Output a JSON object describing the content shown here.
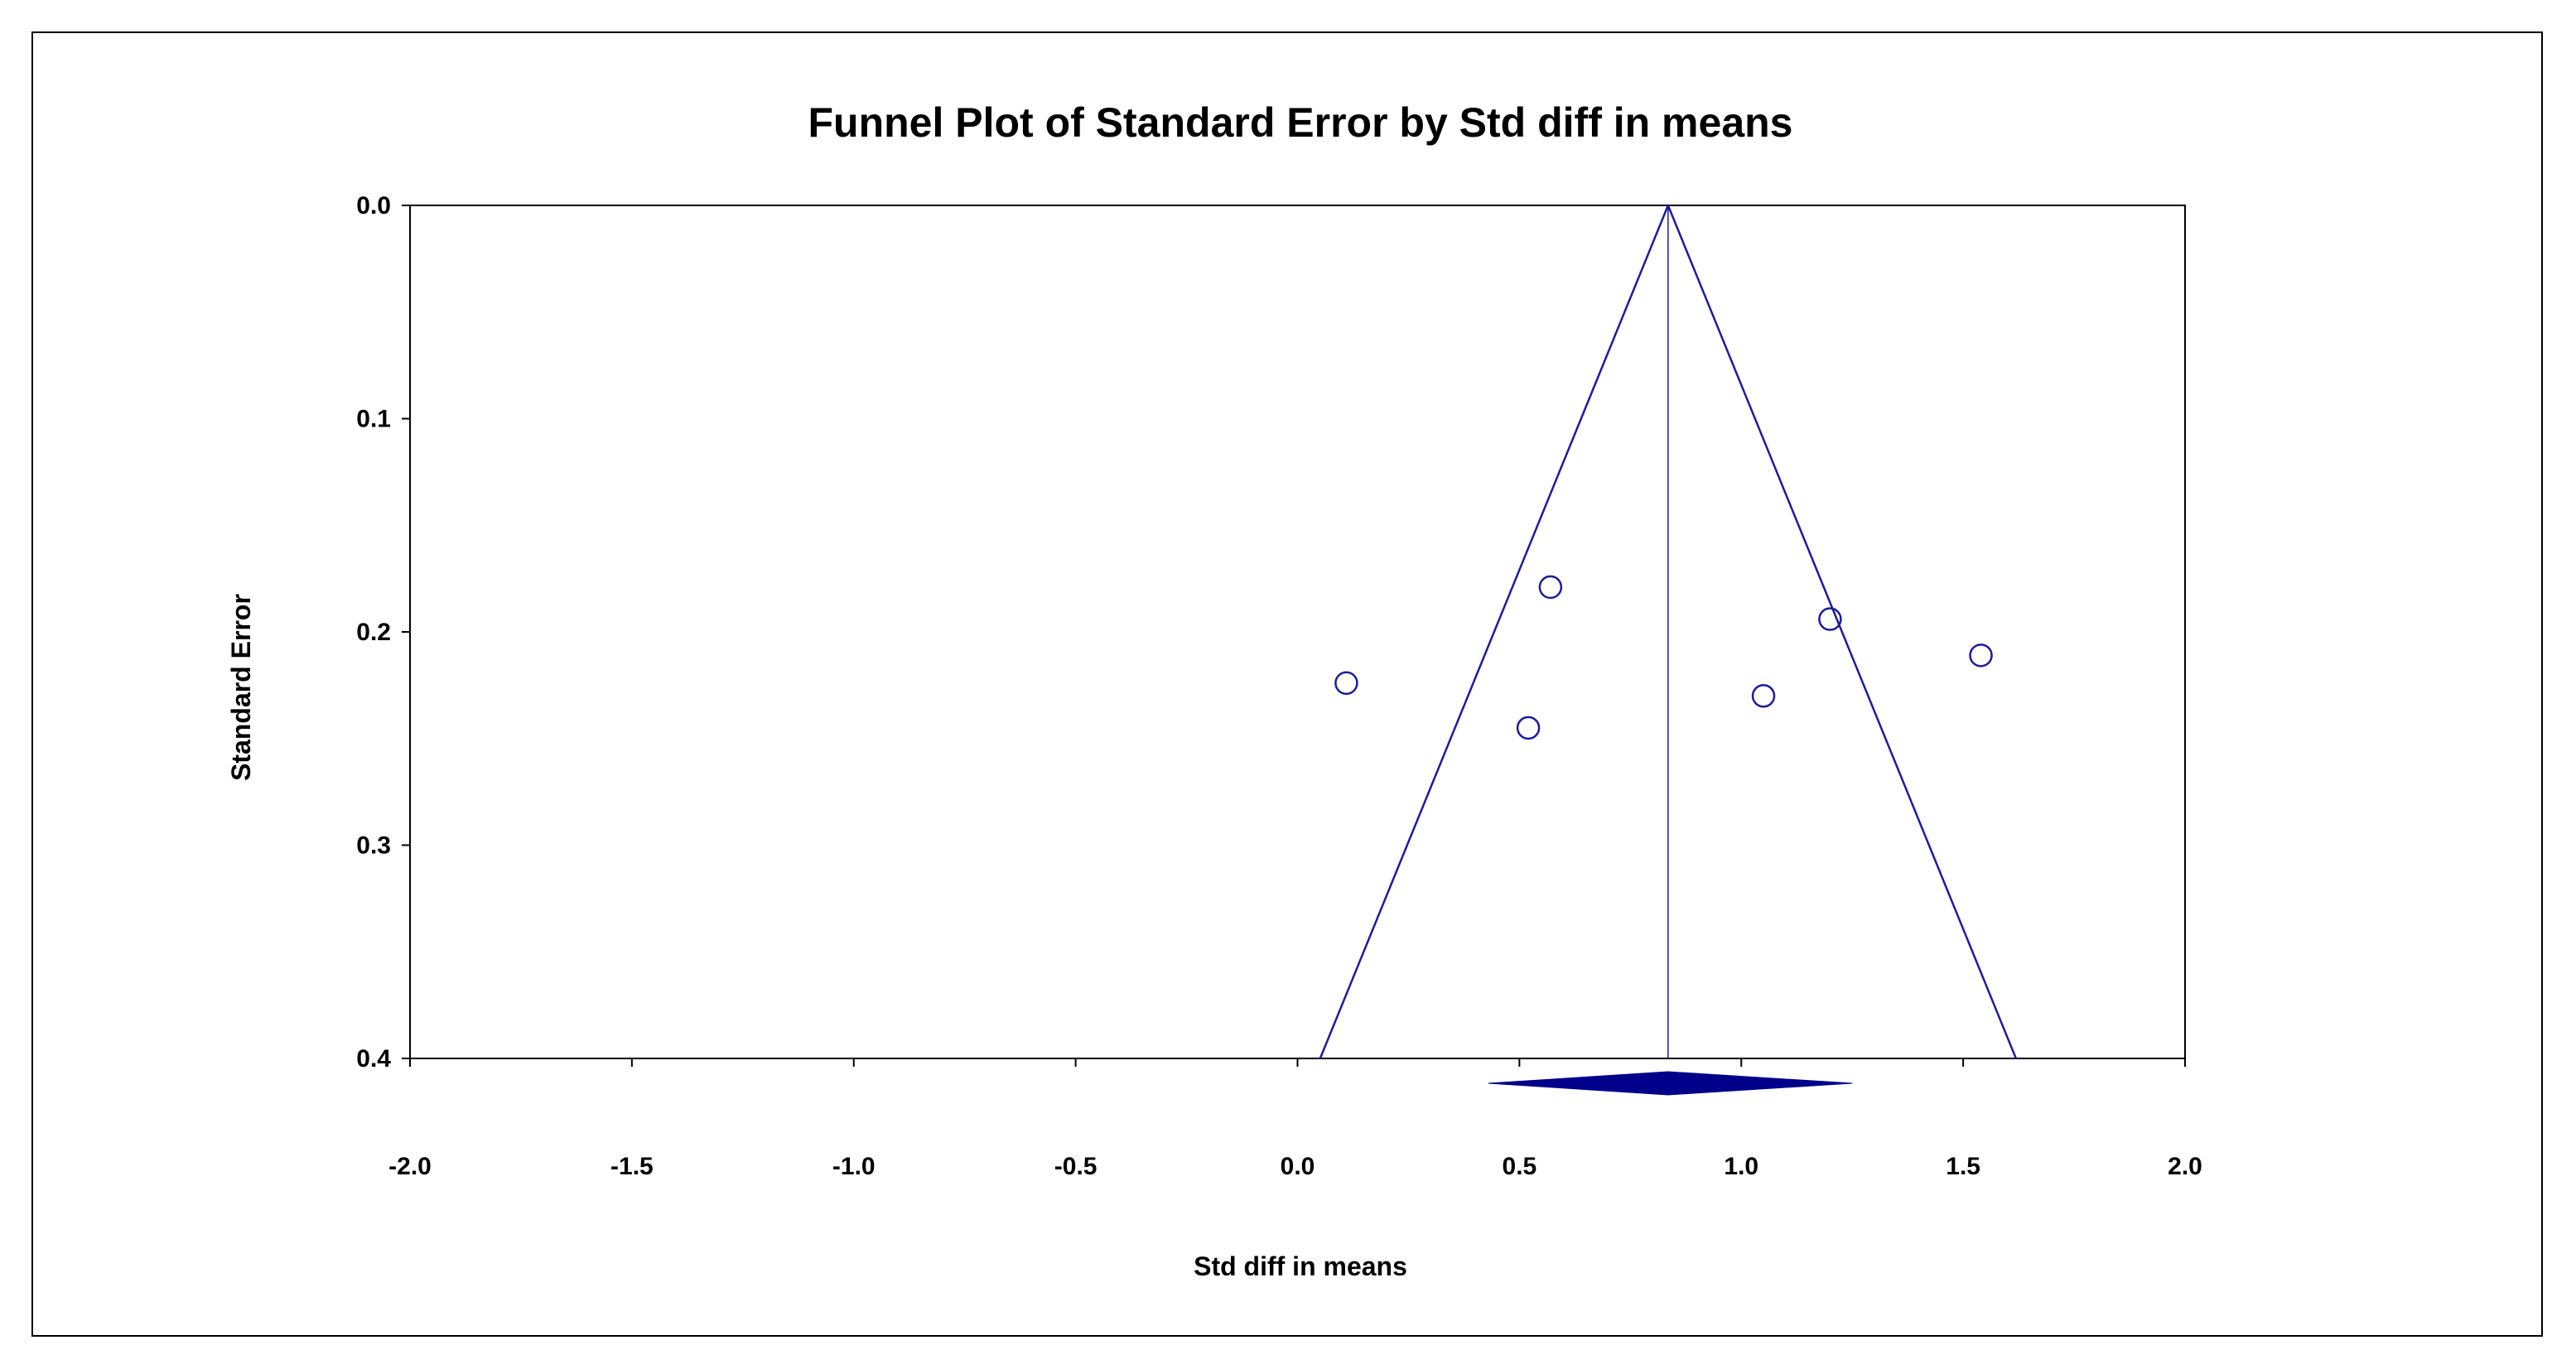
{
  "chart_data": {
    "type": "scatter",
    "title": "Funnel Plot of Standard Error by Std diff in means",
    "xlabel": "Std diff in means",
    "ylabel": "Standard Error",
    "xlim": [
      -2.0,
      2.0
    ],
    "ylim": [
      0.0,
      0.4
    ],
    "y_inverted": true,
    "x_ticks": [
      "-2.0",
      "-1.5",
      "-1.0",
      "-0.5",
      "0.0",
      "0.5",
      "1.0",
      "1.5",
      "2.0"
    ],
    "y_ticks": [
      "0.0",
      "0.1",
      "0.2",
      "0.3",
      "0.4"
    ],
    "series": [
      {
        "points": [
          {
            "x": 0.57,
            "y": 0.179
          },
          {
            "x": 1.2,
            "y": 0.194
          },
          {
            "x": 1.54,
            "y": 0.211
          },
          {
            "x": 0.11,
            "y": 0.224
          },
          {
            "x": 1.05,
            "y": 0.23
          },
          {
            "x": 0.52,
            "y": 0.245
          }
        ]
      }
    ],
    "pooled_effect": 0.835,
    "pooled_ci": [
      0.43,
      1.25
    ],
    "funnel_limit_multiplier": 1.96,
    "grid": false,
    "colors": {
      "marker": "#1c1c9c",
      "funnel": "#1c1c9c",
      "diamond": "#00008b"
    }
  }
}
